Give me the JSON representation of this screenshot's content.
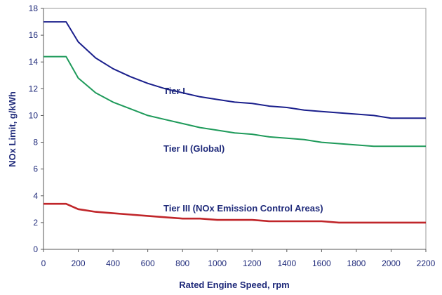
{
  "chart_data": {
    "type": "line",
    "title": "",
    "xlabel": "Rated Engine Speed, rpm",
    "ylabel": "NOx Limit, g/kWh",
    "xlim": [
      0,
      2200
    ],
    "ylim": [
      0,
      18
    ],
    "xticks": [
      0,
      200,
      400,
      600,
      800,
      1000,
      1200,
      1400,
      1600,
      1800,
      2000,
      2200
    ],
    "yticks": [
      0,
      2,
      4,
      6,
      8,
      10,
      12,
      14,
      16,
      18
    ],
    "grid": false,
    "legend": "none",
    "series": [
      {
        "name": "Tier I",
        "color": "#1a1f8c",
        "x": [
          0,
          130,
          200,
          300,
          400,
          500,
          600,
          700,
          800,
          900,
          1000,
          1100,
          1200,
          1300,
          1400,
          1500,
          1600,
          1700,
          1800,
          1900,
          1999,
          2000,
          2200
        ],
        "y": [
          17.0,
          17.0,
          15.5,
          14.3,
          13.5,
          12.9,
          12.4,
          12.0,
          11.7,
          11.4,
          11.2,
          11.0,
          10.9,
          10.7,
          10.6,
          10.4,
          10.3,
          10.2,
          10.1,
          10.0,
          9.8,
          9.8,
          9.8
        ]
      },
      {
        "name": "Tier II (Global)",
        "color": "#1e9a5a",
        "x": [
          0,
          130,
          200,
          300,
          400,
          500,
          600,
          700,
          800,
          900,
          1000,
          1100,
          1200,
          1300,
          1400,
          1500,
          1600,
          1700,
          1800,
          1900,
          1999,
          2000,
          2200
        ],
        "y": [
          14.4,
          14.4,
          12.8,
          11.7,
          11.0,
          10.5,
          10.0,
          9.7,
          9.4,
          9.1,
          8.9,
          8.7,
          8.6,
          8.4,
          8.3,
          8.2,
          8.0,
          7.9,
          7.8,
          7.7,
          7.7,
          7.7,
          7.7
        ]
      },
      {
        "name": "Tier III (NOx Emission Control Areas)",
        "color": "#c0262a",
        "x": [
          0,
          130,
          200,
          300,
          400,
          500,
          600,
          700,
          800,
          900,
          1000,
          1100,
          1200,
          1300,
          1400,
          1500,
          1600,
          1700,
          1800,
          1900,
          1999,
          2000,
          2200
        ],
        "y": [
          3.4,
          3.4,
          3.0,
          2.8,
          2.7,
          2.6,
          2.5,
          2.4,
          2.3,
          2.3,
          2.2,
          2.2,
          2.2,
          2.1,
          2.1,
          2.1,
          2.1,
          2.0,
          2.0,
          2.0,
          2.0,
          2.0,
          2.0
        ]
      }
    ]
  }
}
